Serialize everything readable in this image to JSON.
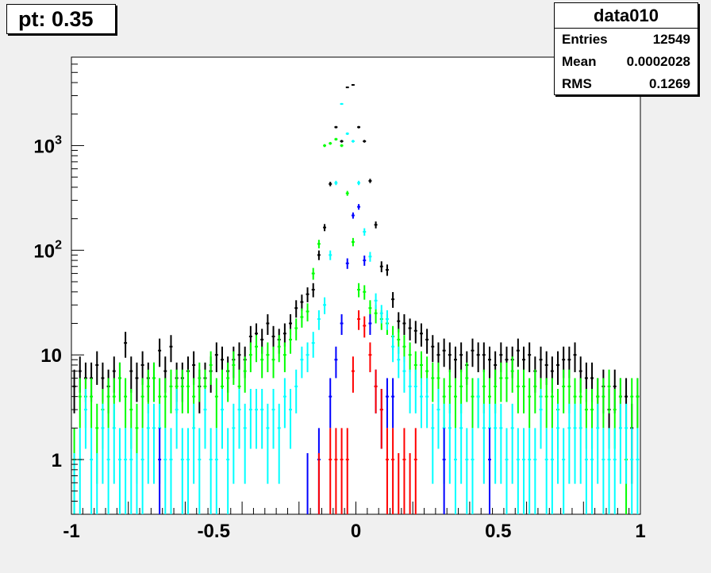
{
  "chart_data": {
    "type": "scatter",
    "title": "pt: 0.35",
    "xlim": [
      -1,
      1
    ],
    "ylim": [
      0.3,
      7000
    ],
    "yscale": "log",
    "x_ticks": [
      -1,
      -0.5,
      0,
      0.5,
      1
    ],
    "x_tick_labels": [
      "-1",
      "-0.5",
      "0",
      "0.5",
      "1"
    ],
    "y_ticks": [
      1,
      10,
      100,
      1000
    ],
    "grid": false,
    "bin_width": 0.02,
    "stats": {
      "name": "data010",
      "rows": [
        {
          "label": "Entries",
          "value": "12549"
        },
        {
          "label": "Mean",
          "value": "0.0002028"
        },
        {
          "label": "RMS",
          "value": "0.1269"
        }
      ]
    },
    "series": [
      {
        "color": "#000000",
        "x": [
          -0.99,
          -0.97,
          -0.95,
          -0.93,
          -0.91,
          -0.89,
          -0.87,
          -0.85,
          -0.83,
          -0.81,
          -0.79,
          -0.77,
          -0.75,
          -0.73,
          -0.71,
          -0.69,
          -0.67,
          -0.65,
          -0.63,
          -0.61,
          -0.59,
          -0.57,
          -0.55,
          -0.53,
          -0.51,
          -0.49,
          -0.47,
          -0.45,
          -0.43,
          -0.41,
          -0.39,
          -0.37,
          -0.35,
          -0.33,
          -0.31,
          -0.29,
          -0.27,
          -0.25,
          -0.23,
          -0.21,
          -0.19,
          -0.17,
          -0.15,
          -0.13,
          -0.11,
          -0.09,
          -0.07,
          -0.05,
          -0.03,
          -0.01,
          0.01,
          0.03,
          0.05,
          0.07,
          0.09,
          0.11,
          0.13,
          0.15,
          0.17,
          0.19,
          0.21,
          0.23,
          0.25,
          0.27,
          0.29,
          0.31,
          0.33,
          0.35,
          0.37,
          0.39,
          0.41,
          0.43,
          0.45,
          0.47,
          0.49,
          0.51,
          0.53,
          0.55,
          0.57,
          0.59,
          0.61,
          0.63,
          0.65,
          0.67,
          0.69,
          0.71,
          0.73,
          0.75,
          0.77,
          0.79,
          0.81,
          0.83,
          0.85,
          0.87,
          0.89,
          0.91,
          0.93,
          0.95,
          0.97,
          0.99
        ],
        "y": [
          5,
          7,
          6,
          6,
          8,
          6,
          5,
          7,
          6,
          13,
          7,
          6,
          8,
          6,
          6,
          11,
          7,
          12,
          6,
          6,
          7,
          8,
          5,
          6,
          7,
          10,
          9,
          7,
          9,
          10,
          9,
          15,
          16,
          14,
          20,
          15,
          14,
          16,
          20,
          28,
          32,
          38,
          42,
          90,
          165,
          430,
          1500,
          1100,
          3600,
          3800,
          1500,
          1100,
          460,
          175,
          70,
          65,
          34,
          21,
          20,
          18,
          17,
          16,
          14,
          12,
          10,
          11,
          10,
          9,
          10,
          8,
          11,
          10,
          10,
          9,
          8,
          10,
          9,
          9,
          11,
          9,
          10,
          7,
          9,
          8,
          7,
          8,
          9,
          9,
          10,
          7,
          6,
          6,
          4,
          5,
          3,
          5,
          4,
          4,
          2,
          4
        ]
      },
      {
        "color": "#00ff00",
        "x": [
          -0.99,
          -0.97,
          -0.95,
          -0.93,
          -0.91,
          -0.89,
          -0.87,
          -0.85,
          -0.83,
          -0.81,
          -0.79,
          -0.77,
          -0.75,
          -0.73,
          -0.71,
          -0.69,
          -0.67,
          -0.65,
          -0.63,
          -0.61,
          -0.59,
          -0.57,
          -0.55,
          -0.53,
          -0.51,
          -0.49,
          -0.47,
          -0.45,
          -0.43,
          -0.41,
          -0.39,
          -0.37,
          -0.35,
          -0.33,
          -0.31,
          -0.29,
          -0.27,
          -0.25,
          -0.23,
          -0.21,
          -0.19,
          -0.17,
          -0.15,
          -0.13,
          -0.11,
          -0.09,
          -0.07,
          -0.05,
          -0.03,
          -0.01,
          0.01,
          0.03,
          0.05,
          0.07,
          0.09,
          0.11,
          0.13,
          0.15,
          0.17,
          0.19,
          0.21,
          0.23,
          0.25,
          0.27,
          0.29,
          0.31,
          0.33,
          0.35,
          0.37,
          0.39,
          0.41,
          0.43,
          0.45,
          0.47,
          0.49,
          0.51,
          0.53,
          0.55,
          0.57,
          0.59,
          0.61,
          0.63,
          0.65,
          0.67,
          0.69,
          0.71,
          0.73,
          0.75,
          0.77,
          0.79,
          0.81,
          0.83,
          0.85,
          0.87,
          0.89,
          0.91,
          0.93,
          0.95,
          0.97,
          0.99
        ],
        "y": [
          1,
          4,
          4,
          4,
          2,
          3,
          4,
          4,
          6,
          4,
          3,
          2,
          4,
          5,
          6,
          4,
          4,
          5,
          5,
          5,
          5,
          4,
          6,
          5,
          8,
          4,
          5,
          6,
          8,
          5,
          7,
          10,
          12,
          9,
          10,
          9,
          12,
          10,
          14,
          18,
          23,
          26,
          60,
          115,
          1000,
          1050,
          1150,
          1000,
          350,
          120,
          42,
          40,
          28,
          25,
          22,
          20,
          15,
          14,
          12,
          10,
          8,
          8,
          7,
          6,
          6,
          4,
          5,
          4,
          5,
          6,
          4,
          4,
          5,
          4,
          5,
          6,
          6,
          7,
          5,
          5,
          4,
          5,
          4,
          4,
          4,
          3,
          5,
          5,
          4,
          4,
          3,
          3,
          4,
          4,
          5,
          3,
          4,
          1,
          4,
          4
        ]
      },
      {
        "color": "#00ffff",
        "x": [
          -0.99,
          -0.97,
          -0.95,
          -0.93,
          -0.91,
          -0.89,
          -0.87,
          -0.85,
          -0.83,
          -0.81,
          -0.79,
          -0.77,
          -0.75,
          -0.73,
          -0.71,
          -0.69,
          -0.67,
          -0.65,
          -0.63,
          -0.61,
          -0.59,
          -0.57,
          -0.55,
          -0.53,
          -0.51,
          -0.49,
          -0.47,
          -0.45,
          -0.43,
          -0.41,
          -0.39,
          -0.37,
          -0.35,
          -0.33,
          -0.31,
          -0.29,
          -0.27,
          -0.25,
          -0.23,
          -0.21,
          -0.19,
          -0.17,
          -0.15,
          -0.13,
          -0.11,
          -0.09,
          -0.07,
          -0.05,
          -0.03,
          -0.01,
          0.01,
          0.03,
          0.05,
          0.07,
          0.09,
          0.11,
          0.13,
          0.15,
          0.17,
          0.19,
          0.21,
          0.23,
          0.25,
          0.27,
          0.29,
          0.31,
          0.33,
          0.35,
          0.37,
          0.39,
          0.41,
          0.43,
          0.45,
          0.47,
          0.49,
          0.51,
          0.53,
          0.55,
          0.57,
          0.59,
          0.61,
          0.63,
          0.65,
          0.67,
          0.69,
          0.71,
          0.73,
          0.75,
          0.77,
          0.79,
          0.81,
          0.83,
          0.85,
          0.87,
          0.89,
          0.91,
          0.93,
          0.95,
          0.97,
          0.99
        ],
        "y": [
          0,
          1,
          3,
          1,
          0,
          2,
          1,
          2,
          1,
          1,
          1,
          0,
          1,
          2,
          2,
          2,
          1,
          1,
          3,
          1,
          1,
          2,
          1,
          3,
          1,
          1,
          3,
          1,
          2,
          3,
          2,
          3,
          3,
          3,
          2,
          3,
          2,
          4,
          3,
          5,
          9,
          10,
          13,
          22,
          30,
          90,
          440,
          2500,
          1300,
          1100,
          440,
          150,
          87,
          33,
          25,
          22,
          12,
          9,
          7,
          5,
          5,
          4,
          4,
          2,
          3,
          2,
          2,
          1,
          2,
          1,
          1,
          4,
          2,
          2,
          2,
          2,
          1,
          2,
          1,
          1,
          1,
          1,
          3,
          1,
          1,
          2,
          1,
          2,
          2,
          2,
          1,
          1,
          2,
          1,
          1,
          1,
          2,
          2,
          1,
          1
        ]
      },
      {
        "color": "#0000ff",
        "x": [
          -0.69,
          -0.17,
          -0.13,
          -0.09,
          -0.07,
          -0.05,
          -0.03,
          -0.01,
          0.01,
          0.03,
          0.05,
          0.07,
          0.09,
          0.11,
          0.13,
          0.31,
          0.47
        ],
        "y": [
          1,
          0,
          1,
          4,
          9,
          20,
          75,
          215,
          260,
          80,
          20,
          5,
          3,
          4,
          4,
          1,
          1
        ]
      },
      {
        "color": "#ff0000",
        "x": [
          -0.13,
          -0.09,
          -0.07,
          -0.05,
          -0.03,
          -0.01,
          0.01,
          0.03,
          0.05,
          0.07,
          0.09,
          0.11,
          0.13,
          0.15,
          0.17,
          0.19,
          0.21
        ],
        "y": [
          0,
          1,
          1,
          1,
          1,
          7,
          22,
          19,
          10,
          5,
          3,
          1,
          1,
          0,
          1,
          0,
          1
        ]
      }
    ]
  }
}
